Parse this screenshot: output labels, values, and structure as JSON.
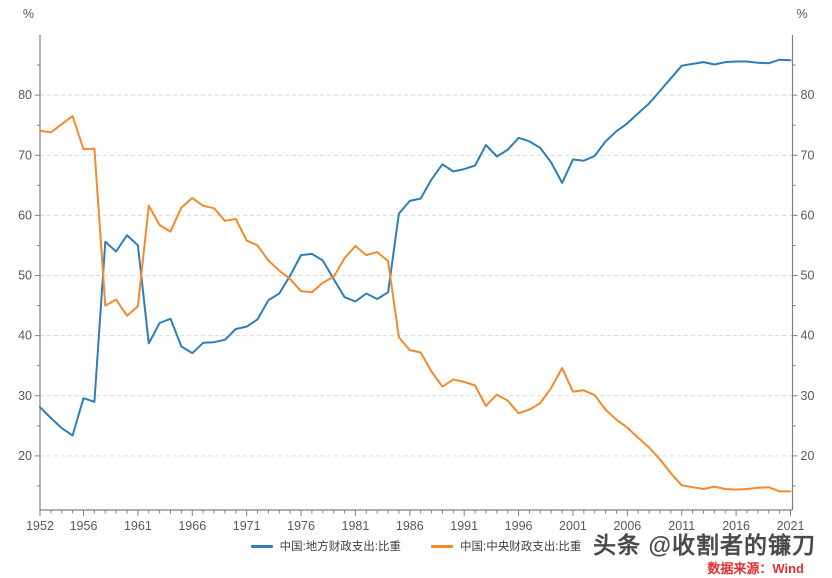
{
  "style": {
    "axis_color": "#808080",
    "grid_color": "#d9d9d9",
    "tick_label_color": "#595959",
    "background": "#ffffff"
  },
  "chart_data": {
    "type": "line",
    "title": "",
    "grid": "horizontal dashed at major y ticks",
    "legend_position": "bottom-center",
    "x": [
      1952,
      1953,
      1954,
      1955,
      1956,
      1957,
      1958,
      1959,
      1960,
      1961,
      1962,
      1963,
      1964,
      1965,
      1966,
      1967,
      1968,
      1969,
      1970,
      1971,
      1972,
      1973,
      1974,
      1975,
      1976,
      1977,
      1978,
      1979,
      1980,
      1981,
      1982,
      1983,
      1984,
      1985,
      1986,
      1987,
      1988,
      1989,
      1990,
      1991,
      1992,
      1993,
      1994,
      1995,
      1996,
      1997,
      1998,
      1999,
      2000,
      2001,
      2002,
      2003,
      2004,
      2005,
      2006,
      2007,
      2008,
      2009,
      2010,
      2011,
      2012,
      2013,
      2014,
      2015,
      2016,
      2017,
      2018,
      2019,
      2020,
      2021
    ],
    "series": [
      {
        "name": "中国:地方财政支出:比重",
        "color": "#2e7eb8",
        "values": [
          28.1,
          26.3,
          24.6,
          23.4,
          29.6,
          29.0,
          55.6,
          54.0,
          56.7,
          55.0,
          38.7,
          42.1,
          42.8,
          38.2,
          37.1,
          38.8,
          38.9,
          39.3,
          41.1,
          41.5,
          42.7,
          45.9,
          47.0,
          50.0,
          53.4,
          53.6,
          52.5,
          49.4,
          46.4,
          45.7,
          47.0,
          46.1,
          47.2,
          60.3,
          62.4,
          62.8,
          66.0,
          68.5,
          67.3,
          67.7,
          68.3,
          71.7,
          69.8,
          70.9,
          72.9,
          72.3,
          71.2,
          68.8,
          65.4,
          69.3,
          69.1,
          69.9,
          72.3,
          74.0,
          75.3,
          77.0,
          78.6,
          80.7,
          82.8,
          84.9,
          85.2,
          85.5,
          85.1,
          85.5,
          85.6,
          85.6,
          85.4,
          85.3,
          85.9,
          85.8
        ]
      },
      {
        "name": "中国:中央财政支出:比重",
        "color": "#f5892c",
        "values": [
          74.1,
          73.8,
          75.2,
          76.5,
          71.0,
          71.1,
          45.0,
          46.0,
          43.3,
          44.9,
          61.6,
          58.4,
          57.3,
          61.3,
          62.9,
          61.6,
          61.2,
          59.1,
          59.4,
          55.8,
          55.0,
          52.5,
          50.8,
          49.4,
          47.4,
          47.2,
          48.8,
          49.8,
          52.9,
          54.9,
          53.4,
          53.9,
          52.4,
          39.7,
          37.6,
          37.2,
          34.0,
          31.5,
          32.7,
          32.3,
          31.7,
          28.3,
          30.2,
          29.2,
          27.1,
          27.7,
          28.8,
          31.3,
          34.6,
          30.7,
          30.9,
          30.1,
          27.7,
          26.0,
          24.7,
          23.0,
          21.4,
          19.4,
          17.1,
          15.1,
          14.8,
          14.5,
          14.9,
          14.5,
          14.4,
          14.5,
          14.7,
          14.8,
          14.1,
          14.1
        ]
      }
    ],
    "y_axis": {
      "unit": "%",
      "ticks_major": [
        20,
        30,
        40,
        50,
        60,
        70,
        80
      ],
      "minor_step": 5,
      "minor_range": [
        15,
        85
      ],
      "range": [
        11,
        90
      ],
      "mirrored_right": true
    },
    "x_axis": {
      "tick_labels": [
        "1952",
        "1956",
        "1961",
        "1966",
        "1971",
        "1976",
        "1981",
        "1986",
        "1991",
        "1996",
        "2001",
        "2006",
        "2011",
        "2016",
        "2021"
      ],
      "minor_step": 1
    }
  },
  "watermark": {
    "text": "头条 @收割者的镰刀",
    "source": "数据来源：Wind",
    "source_color": "#e03232"
  }
}
